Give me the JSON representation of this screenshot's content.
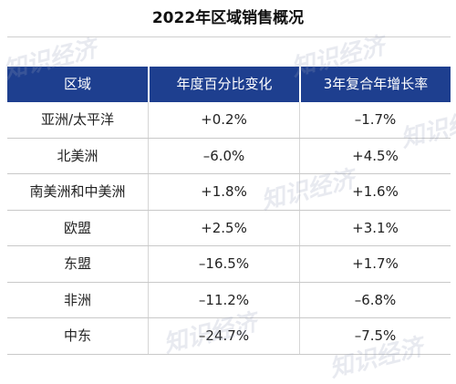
{
  "title": "2022年区域销售概况",
  "watermark_text": "知识经济",
  "colors": {
    "header_bg": "#1e3f8f",
    "header_text": "#ffffff"
  },
  "table": {
    "headers": [
      "区域",
      "年度百分比变化",
      "3年复合年增长率"
    ],
    "rows": [
      [
        "亚洲/太平洋",
        "+0.2%",
        "–1.7%"
      ],
      [
        "北美洲",
        "–6.0%",
        "+4.5%"
      ],
      [
        "南美洲和中美洲",
        "+1.8%",
        "+1.6%"
      ],
      [
        "欧盟",
        "+2.5%",
        "+3.1%"
      ],
      [
        "东盟",
        "–16.5%",
        "+1.7%"
      ],
      [
        "非洲",
        "–11.2%",
        "–6.8%"
      ],
      [
        "中东",
        "–24.7%",
        "–7.5%"
      ]
    ]
  }
}
